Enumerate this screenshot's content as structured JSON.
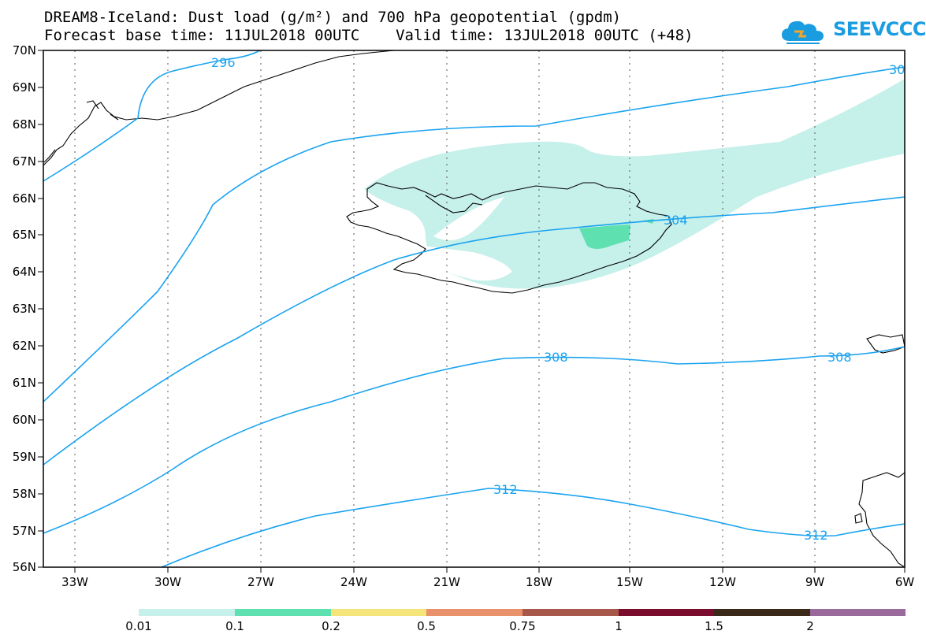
{
  "title_line1": "DREAM8-Iceland: Dust load (g/m²) and 700 hPa geopotential (gpdm)",
  "title_line2": "Forecast base time: 11JUL2018 00UTC    Valid time: 13JUL2018 00UTC (+48)",
  "logo_text": "SEEVCCC",
  "lat_labels": [
    "70N",
    "69N",
    "68N",
    "67N",
    "66N",
    "65N",
    "64N",
    "63N",
    "62N",
    "61N",
    "60N",
    "59N",
    "58N",
    "57N",
    "56N"
  ],
  "lon_labels": [
    "33W",
    "30W",
    "27W",
    "24W",
    "21W",
    "18W",
    "15W",
    "12W",
    "9W",
    "6W"
  ],
  "contour_labels": [
    "296",
    "30",
    "304",
    "308",
    "308",
    "312",
    "312"
  ],
  "legend": {
    "colors": [
      "#c6f0ea",
      "#5ee0b0",
      "#f4e47a",
      "#e8916a",
      "#a8584a",
      "#7a0c2e",
      "#3a2818",
      "#9b6a9c"
    ],
    "labels": [
      "0.01",
      "0.1",
      "0.2",
      "0.5",
      "0.75",
      "1",
      "1.5",
      "2"
    ]
  },
  "colors": {
    "contour": "#1aa3f0",
    "dust_low": "#c6f0ea",
    "dust_mid": "#5ee0b0"
  }
}
